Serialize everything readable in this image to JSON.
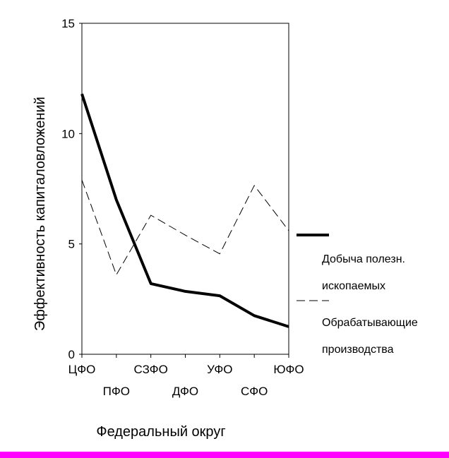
{
  "chart_data": {
    "type": "line",
    "categories": [
      "ЦФО",
      "ПФО",
      "СЗФО",
      "ДФО",
      "УФО",
      "СФО",
      "ЮФО"
    ],
    "series": [
      {
        "name": "Добыча полезн. ископаемых",
        "line_lines": [
          "Добыча полезн.",
          "ископаемых"
        ],
        "values": [
          11.8,
          7.0,
          3.2,
          2.85,
          2.65,
          1.75,
          1.25
        ],
        "style": "solid",
        "color": "#000000"
      },
      {
        "name": "Обрабатывающие производства",
        "line_lines": [
          "Обрабатывающие",
          "производства"
        ],
        "values": [
          7.9,
          3.6,
          6.3,
          5.4,
          4.55,
          7.65,
          5.6
        ],
        "style": "dashed",
        "color": "#000000"
      }
    ],
    "xlabel": "Федеральный округ",
    "ylabel": "Эффективность капиталовложений",
    "ylim": [
      0,
      15
    ],
    "yticks": [
      "0",
      "5",
      "10",
      "15"
    ],
    "grid": false,
    "legend_placement": "right"
  },
  "footer_bar_color": "#ff00ff"
}
